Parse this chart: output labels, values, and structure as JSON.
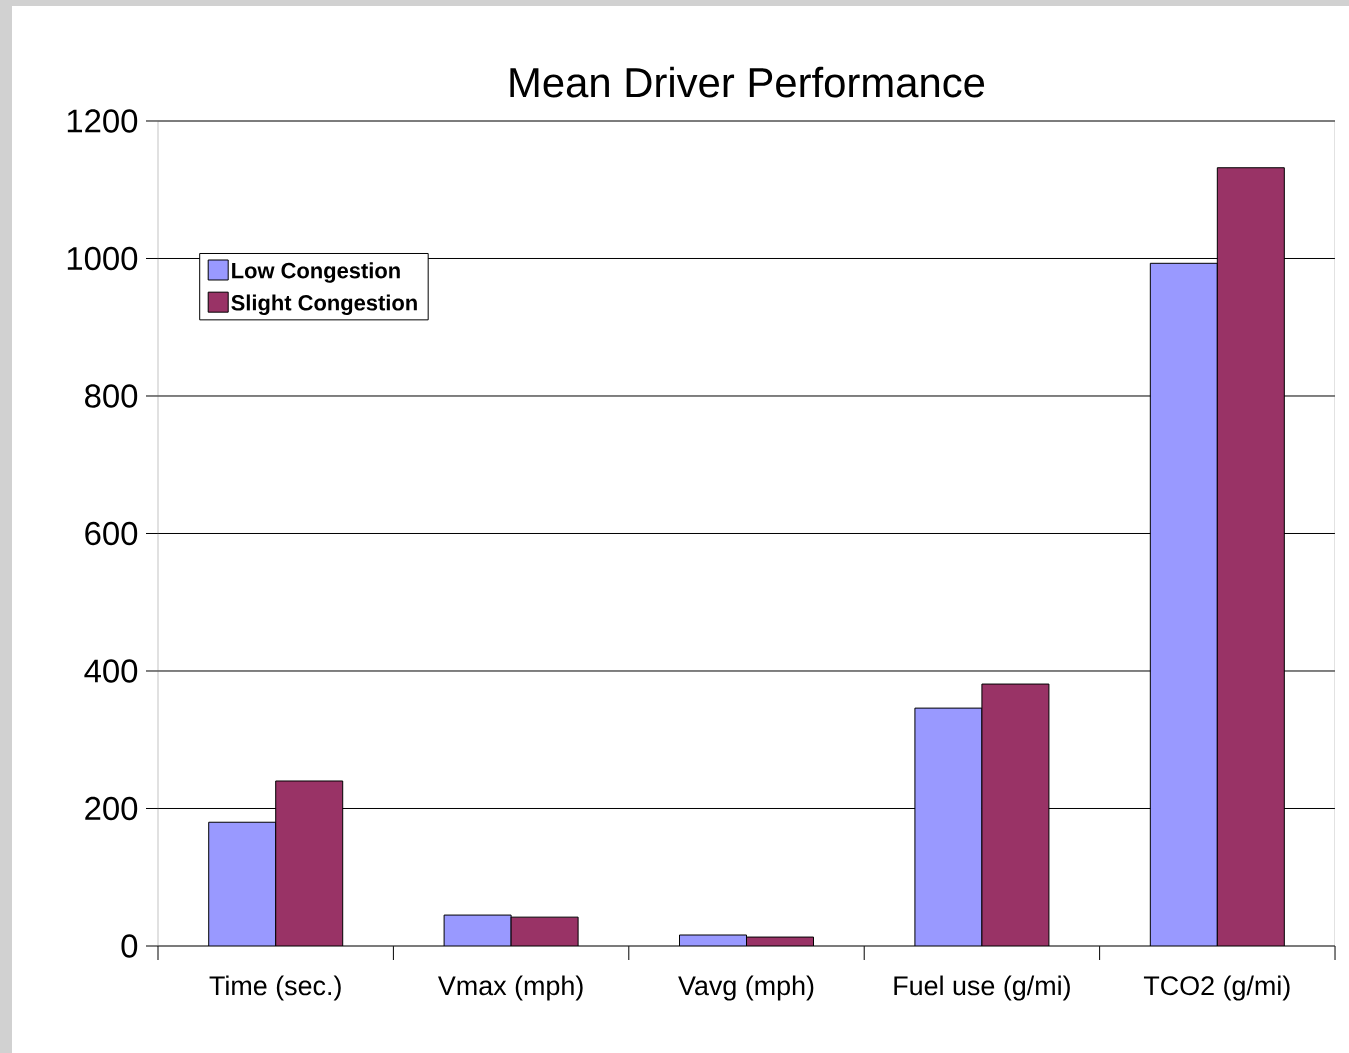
{
  "chart_data": {
    "type": "bar",
    "title": "Mean Driver Performance",
    "categories": [
      "Time (sec.)",
      "Vmax (mph)",
      "Vavg (mph)",
      "Fuel use (g/mi)",
      "TCO2 (g/mi)"
    ],
    "series": [
      {
        "name": "Low Congestion",
        "color": "#9999ff",
        "values": [
          180,
          45,
          16,
          346,
          993
        ]
      },
      {
        "name": "Slight Congestion",
        "color": "#993366",
        "values": [
          240,
          42,
          13,
          381,
          1132
        ]
      }
    ],
    "ylim": [
      0,
      1200
    ],
    "yticks": [
      0,
      200,
      400,
      600,
      800,
      1000,
      1200
    ],
    "grid": "y",
    "legend": "top left"
  }
}
